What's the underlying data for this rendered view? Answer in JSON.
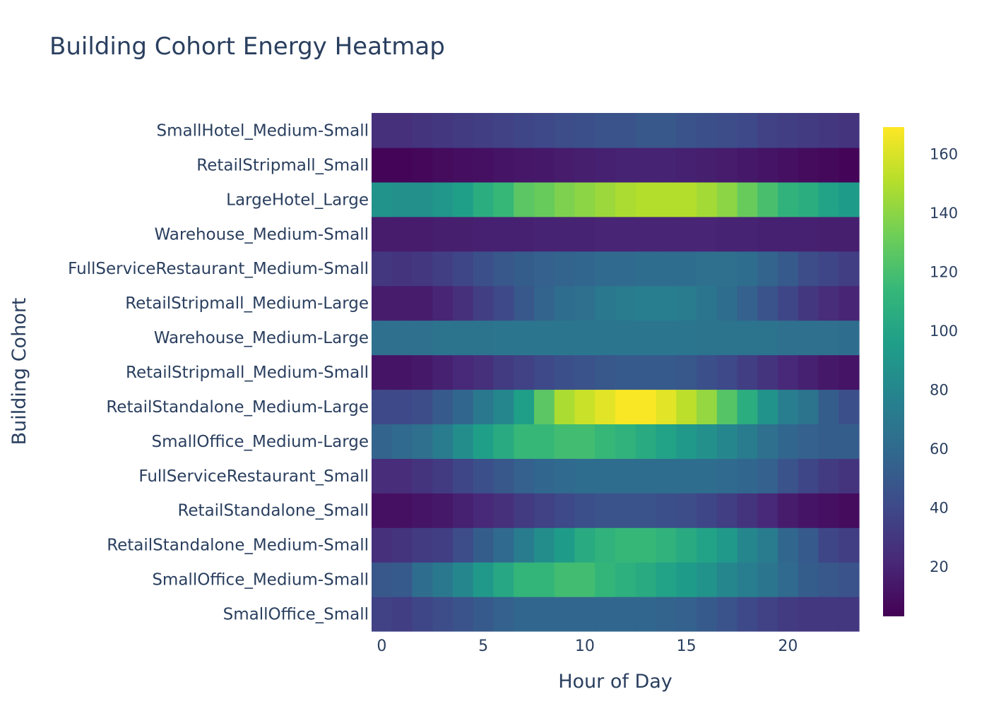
{
  "chart_data": {
    "type": "heatmap",
    "title": "Building Cohort Energy Heatmap",
    "xlabel": "Hour of Day",
    "ylabel": "Building Cohort",
    "x": [
      0,
      1,
      2,
      3,
      4,
      5,
      6,
      7,
      8,
      9,
      10,
      11,
      12,
      13,
      14,
      15,
      16,
      17,
      18,
      19,
      20,
      21,
      22,
      23
    ],
    "x_ticks": [
      0,
      5,
      10,
      15,
      20
    ],
    "x_tick_labels": [
      "0",
      "5",
      "10",
      "15",
      "20"
    ],
    "colorscale": "Viridis",
    "zmin": 3,
    "zmax": 169,
    "colorbar_ticks": [
      20,
      40,
      60,
      80,
      100,
      120,
      140,
      160
    ],
    "colorbar_tick_labels": [
      "20",
      "40",
      "60",
      "80",
      "100",
      "120",
      "140",
      "160"
    ],
    "rows": [
      {
        "name": "SmallOffice_Small",
        "values": [
          36,
          34,
          38,
          42,
          46,
          50,
          54,
          58,
          58,
          58,
          58,
          58,
          58,
          58,
          56,
          54,
          50,
          46,
          40,
          36,
          32,
          30,
          30,
          30
        ]
      },
      {
        "name": "SmallOffice_Medium-Small",
        "values": [
          48,
          50,
          62,
          70,
          80,
          92,
          102,
          112,
          112,
          118,
          118,
          112,
          108,
          104,
          98,
          94,
          88,
          80,
          74,
          68,
          60,
          52,
          48,
          46
        ]
      },
      {
        "name": "RetailStandalone_Medium-Small",
        "values": [
          26,
          28,
          32,
          34,
          42,
          52,
          60,
          72,
          84,
          94,
          104,
          110,
          114,
          114,
          110,
          104,
          98,
          92,
          80,
          72,
          58,
          50,
          38,
          34
        ]
      },
      {
        "name": "RetailStandalone_Small",
        "values": [
          10,
          10,
          12,
          14,
          18,
          22,
          26,
          32,
          36,
          40,
          44,
          46,
          46,
          46,
          44,
          42,
          38,
          34,
          28,
          22,
          16,
          12,
          10,
          8
        ]
      },
      {
        "name": "FullServiceRestaurant_Small",
        "values": [
          24,
          24,
          28,
          32,
          38,
          44,
          48,
          54,
          58,
          60,
          62,
          62,
          62,
          62,
          62,
          62,
          62,
          60,
          58,
          54,
          46,
          38,
          32,
          28
        ]
      },
      {
        "name": "SmallOffice_Medium-Large",
        "values": [
          56,
          60,
          64,
          72,
          84,
          96,
          104,
          114,
          114,
          118,
          118,
          114,
          110,
          104,
          98,
          92,
          86,
          80,
          72,
          64,
          58,
          54,
          52,
          52
        ]
      },
      {
        "name": "RetailStandalone_Medium-Large",
        "values": [
          40,
          40,
          42,
          50,
          58,
          70,
          80,
          96,
          126,
          148,
          156,
          162,
          168,
          168,
          162,
          152,
          142,
          124,
          106,
          88,
          74,
          66,
          52,
          44
        ]
      },
      {
        "name": "RetailStripmall_Medium-Small",
        "values": [
          12,
          12,
          14,
          18,
          22,
          26,
          32,
          36,
          40,
          44,
          46,
          48,
          50,
          50,
          50,
          48,
          44,
          40,
          34,
          28,
          22,
          18,
          14,
          12
        ]
      },
      {
        "name": "Warehouse_Medium-Large",
        "values": [
          64,
          64,
          64,
          66,
          66,
          66,
          68,
          68,
          68,
          68,
          68,
          68,
          68,
          68,
          68,
          68,
          66,
          66,
          66,
          66,
          64,
          64,
          64,
          62
        ]
      },
      {
        "name": "RetailStripmall_Medium-Large",
        "values": [
          16,
          16,
          16,
          20,
          26,
          34,
          40,
          48,
          56,
          62,
          64,
          70,
          72,
          74,
          74,
          72,
          68,
          62,
          54,
          46,
          38,
          30,
          24,
          20
        ]
      },
      {
        "name": "FullServiceRestaurant_Medium-Small",
        "values": [
          30,
          28,
          30,
          34,
          38,
          44,
          48,
          52,
          54,
          56,
          58,
          60,
          60,
          62,
          62,
          62,
          64,
          64,
          62,
          56,
          50,
          42,
          38,
          34
        ]
      },
      {
        "name": "Warehouse_Medium-Small",
        "values": [
          16,
          16,
          16,
          17,
          17,
          18,
          18,
          18,
          19,
          19,
          19,
          20,
          20,
          20,
          20,
          20,
          20,
          19,
          19,
          18,
          18,
          18,
          17,
          17
        ]
      },
      {
        "name": "LargeHotel_Large",
        "values": [
          88,
          86,
          86,
          90,
          96,
          106,
          114,
          126,
          130,
          136,
          140,
          144,
          148,
          150,
          150,
          150,
          146,
          140,
          130,
          120,
          110,
          106,
          98,
          94
        ]
      },
      {
        "name": "RetailStripmall_Small",
        "values": [
          5,
          5,
          6,
          8,
          9,
          10,
          12,
          13,
          14,
          16,
          17,
          18,
          19,
          19,
          19,
          18,
          17,
          16,
          14,
          12,
          10,
          8,
          7,
          5
        ]
      },
      {
        "name": "SmallHotel_Medium-Small",
        "values": [
          26,
          26,
          28,
          30,
          32,
          34,
          36,
          38,
          40,
          42,
          44,
          46,
          46,
          48,
          48,
          46,
          44,
          42,
          40,
          36,
          34,
          32,
          30,
          28
        ]
      }
    ]
  }
}
